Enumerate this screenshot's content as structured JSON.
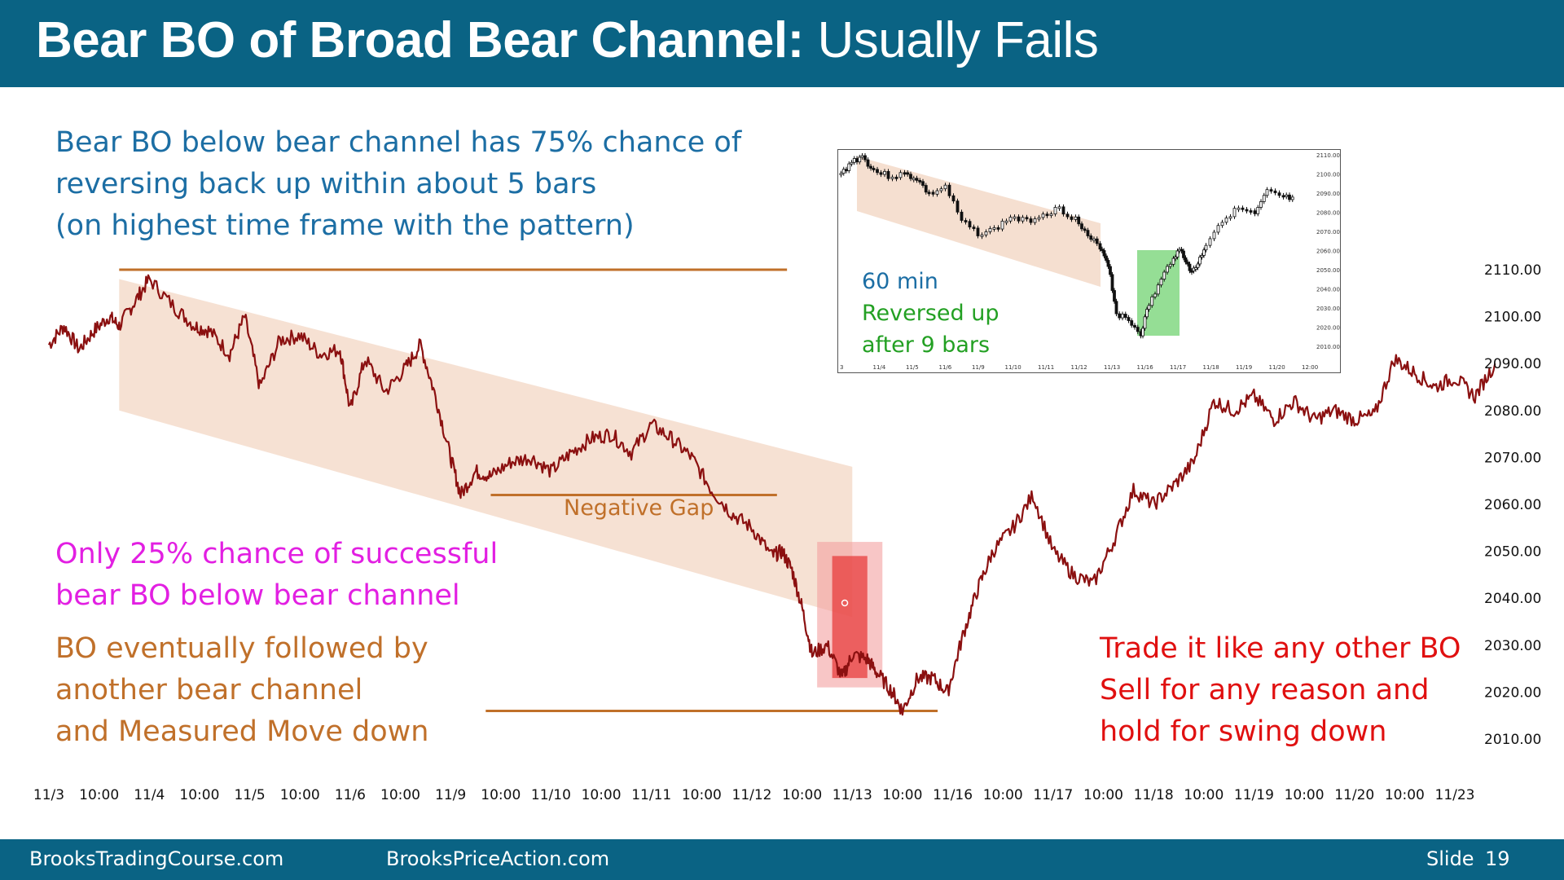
{
  "slide": {
    "title_bold": "Bear BO of Broad Bear Channel:",
    "title_normal": " Usually Fails",
    "footer_left": "BrooksTradingCourse.com",
    "footer_center": "BrooksPriceAction.com",
    "slide_label": "Slide",
    "slide_number": "19"
  },
  "notes": {
    "top": {
      "color": "#1c6ea4",
      "lines": [
        "Bear BO below bear channel has 75% chance of",
        "reversing back up within about 5 bars",
        "(on highest time frame with the pattern)"
      ]
    },
    "magenta": {
      "color": "#e21fe2",
      "lines": [
        "Only 25% chance of successful",
        "bear BO below bear channel"
      ]
    },
    "orange": {
      "color": "#c0702a",
      "lines": [
        "BO eventually followed by",
        "another bear channel",
        "and Measured Move down"
      ]
    },
    "red": {
      "color": "#e01010",
      "lines": [
        "Trade it like any other BO",
        "Sell for any reason and",
        "hold for swing down"
      ]
    },
    "negative_gap": "Negative Gap"
  },
  "inset": {
    "timeframe": "60 min",
    "line2": "Reversed up",
    "line3": "after 9 bars",
    "timeframe_color": "#1c6ea4",
    "reversal_color": "#23a023",
    "y_ticks": [
      "2110.00",
      "2100.00",
      "2090.00",
      "2080.00",
      "2070.00",
      "2060.00",
      "2050.00",
      "2040.00",
      "2030.00",
      "2020.00",
      "2010.00"
    ],
    "x_ticks": [
      "3",
      "11/4",
      "11/5",
      "11/6",
      "11/9",
      "11/10",
      "11/11",
      "11/12",
      "11/13",
      "11/16",
      "11/17",
      "11/18",
      "11/19",
      "11/20",
      "12:00"
    ]
  },
  "chart_data": {
    "type": "line",
    "title": "",
    "xlabel": "",
    "ylabel": "",
    "ylim": [
      2005,
      2115
    ],
    "y_ticks": [
      2110,
      2100,
      2090,
      2080,
      2070,
      2060,
      2050,
      2040,
      2030,
      2020,
      2010
    ],
    "y_tick_labels": [
      "2110.00",
      "2100.00",
      "2090.00",
      "2080.00",
      "2070.00",
      "2060.00",
      "2050.00",
      "2040.00",
      "2030.00",
      "2020.00",
      "2010.00"
    ],
    "x_tick_labels": [
      "11/3",
      "10:00",
      "11/4",
      "10:00",
      "11/5",
      "10:00",
      "11/6",
      "10:00",
      "11/9",
      "10:00",
      "11/10",
      "10:00",
      "11/11",
      "10:00",
      "11/12",
      "10:00",
      "11/13",
      "10:00",
      "11/16",
      "10:00",
      "11/17",
      "10:00",
      "11/18",
      "10:00",
      "11/19",
      "10:00",
      "11/20",
      "10:00",
      "11/23"
    ],
    "series": [
      {
        "color": "#8b1010",
        "x": [
          0.0,
          0.3,
          0.6,
          0.9,
          1.2,
          1.4,
          1.7,
          2.0,
          2.5,
          2.9,
          3.2,
          3.6,
          3.9,
          4.2,
          4.6,
          5.0,
          5.4,
          5.8,
          6.0,
          6.3,
          6.7,
          7.1,
          7.4,
          7.7,
          8.0,
          8.2,
          8.5,
          8.8,
          9.2,
          9.6,
          10.0,
          10.4,
          10.8,
          11.2,
          11.6,
          12.0,
          12.4,
          12.8,
          13.2,
          13.6,
          14.0,
          14.4,
          14.6,
          14.8,
          15.0,
          15.2,
          15.5,
          15.8,
          16.0,
          16.3,
          16.5,
          16.8,
          17.0,
          17.3,
          17.6,
          17.9,
          18.2,
          18.5,
          18.8,
          19.2,
          19.6,
          20.0,
          20.4,
          20.8,
          21.2,
          21.6,
          22.0,
          22.4,
          22.8,
          23.2,
          23.6,
          24.0,
          24.4,
          24.8,
          25.2,
          25.6,
          26.0,
          26.4,
          26.8,
          27.2,
          27.6,
          28.0,
          28.4,
          28.8
        ],
        "y": [
          2094,
          2098,
          2093,
          2097,
          2100,
          2098,
          2103,
          2108,
          2102,
          2098,
          2097,
          2092,
          2100,
          2085,
          2095,
          2096,
          2092,
          2093,
          2080,
          2091,
          2084,
          2089,
          2094,
          2083,
          2070,
          2062,
          2067,
          2066,
          2069,
          2070,
          2067,
          2071,
          2074,
          2075,
          2071,
          2077,
          2074,
          2070,
          2063,
          2058,
          2055,
          2049,
          2050,
          2046,
          2038,
          2028,
          2030,
          2023,
          2028,
          2027,
          2024,
          2020,
          2016,
          2023,
          2023,
          2020,
          2032,
          2042,
          2050,
          2055,
          2062,
          2050,
          2045,
          2043,
          2052,
          2063,
          2060,
          2064,
          2069,
          2082,
          2080,
          2083,
          2078,
          2082,
          2078,
          2080,
          2078,
          2079,
          2091,
          2088,
          2085,
          2087,
          2083,
          2090
        ]
      }
    ],
    "annotations": [
      "Negative Gap"
    ]
  },
  "colors": {
    "title_bar": "#0a6384",
    "price_line": "#8b1010",
    "channel_fill": "#f4dccb",
    "guide_line": "#c0702a",
    "breakout_box": "#f4a0a0",
    "breakout_box_inner": "#e83c3c",
    "reversal_box": "#7ad67a"
  }
}
